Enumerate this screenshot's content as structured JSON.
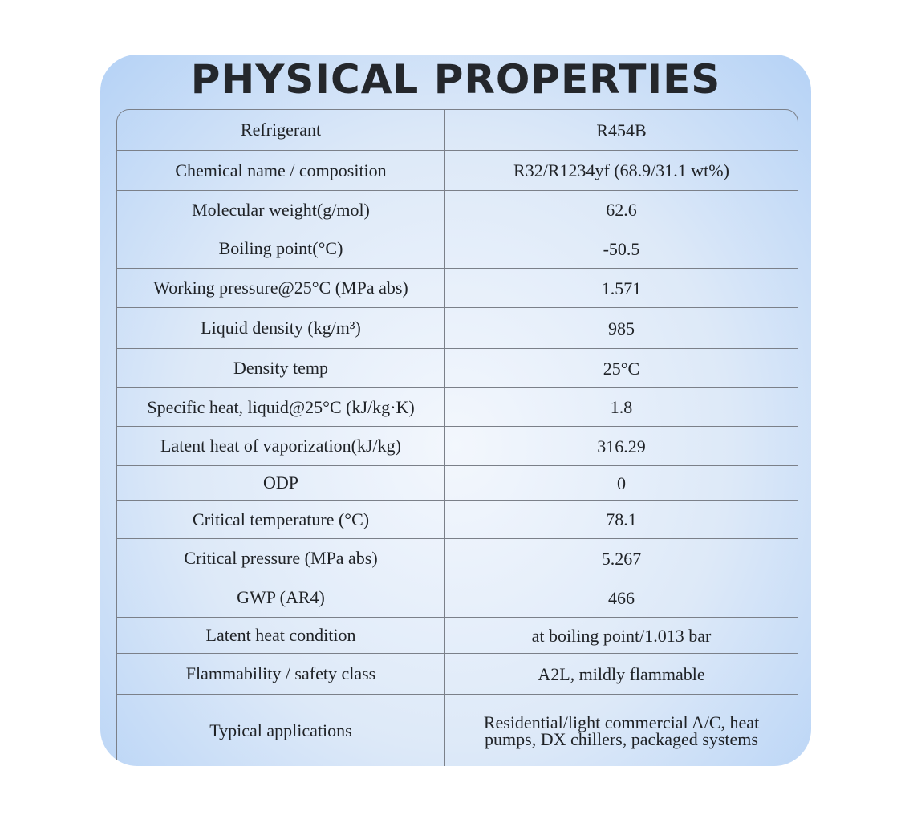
{
  "title": "PHYSICAL PROPERTIES",
  "table": {
    "rows": [
      [
        "Refrigerant",
        "R454B"
      ],
      [
        "Chemical name / composition",
        "R32/R1234yf (68.9/31.1 wt%)"
      ],
      [
        "Molecular weight(g/mol)",
        "62.6"
      ],
      [
        "Boiling point(°C)",
        "-50.5"
      ],
      [
        "Working pressure@25°C (MPa abs)",
        "1.571"
      ],
      [
        "Liquid density (kg/m³)",
        "985"
      ],
      [
        "Density temp",
        "25°C"
      ],
      [
        "Specific heat, liquid@25°C (kJ/kg·K)",
        "1.8"
      ],
      [
        "Latent heat of vaporization(kJ/kg)",
        "316.29"
      ],
      [
        "ODP",
        "0"
      ],
      [
        "Critical temperature (°C)",
        "78.1"
      ],
      [
        "Critical pressure (MPa abs)",
        "5.267"
      ],
      [
        "GWP (AR4)",
        "466"
      ],
      [
        "Latent heat condition",
        "at boiling point/1.013 bar"
      ],
      [
        "Flammability / safety class",
        "A2L, mildly flammable"
      ],
      [
        "Typical applications",
        "Residential/light commercial A/C, heat pumps, DX chillers, packaged systems"
      ]
    ]
  }
}
